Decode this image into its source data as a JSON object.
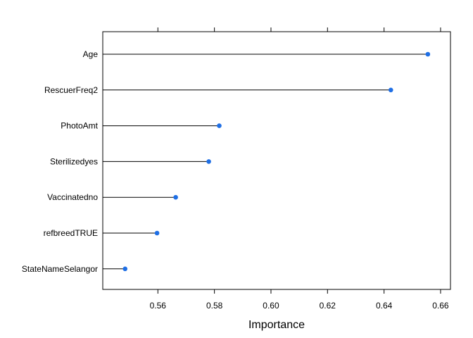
{
  "chart_data": {
    "type": "dotplot",
    "categories": [
      "Age",
      "RescuerFreq2",
      "PhotoAmt",
      "Sterilizedyes",
      "Vaccinatedno",
      "refbreedTRUE",
      "StateNameSelangor"
    ],
    "values": [
      0.6555,
      0.6424,
      0.5817,
      0.578,
      0.5663,
      0.5597,
      0.5484
    ],
    "xlabel": "Importance",
    "ylabel": "",
    "xlim": [
      0.5405,
      0.6635
    ],
    "xticks": [
      0.56,
      0.58,
      0.6,
      0.62,
      0.64,
      0.66
    ],
    "xtick_labels": [
      "0.56",
      "0.58",
      "0.60",
      "0.62",
      "0.64",
      "0.66"
    ],
    "grid": false,
    "colors": {
      "point": "#1f6fe5",
      "segment": "#000000",
      "frame": "#000000"
    }
  }
}
